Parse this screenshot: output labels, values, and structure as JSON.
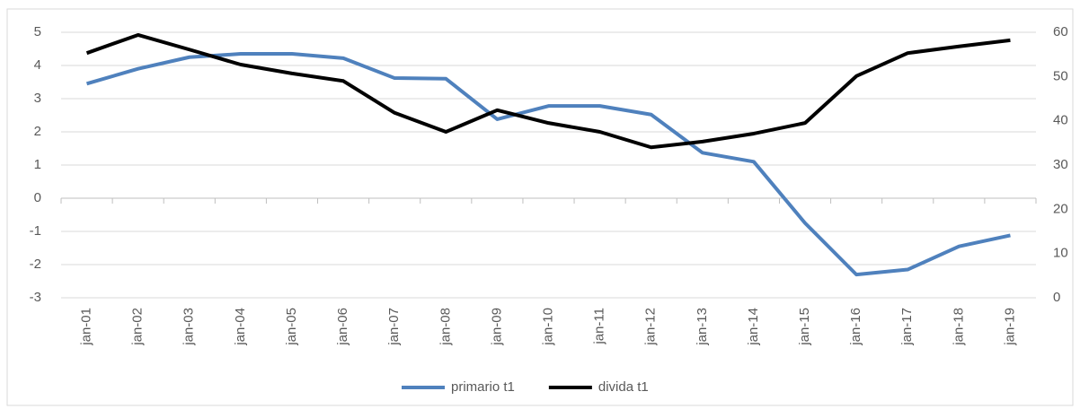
{
  "chart_data": {
    "type": "line",
    "categories": [
      "jan-01",
      "jan-02",
      "jan-03",
      "jan-04",
      "jan-05",
      "jan-06",
      "jan-07",
      "jan-08",
      "jan-09",
      "jan-10",
      "jan-11",
      "jan-12",
      "jan-13",
      "jan-14",
      "jan-15",
      "jan-16",
      "jan-17",
      "jan-18",
      "jan-19"
    ],
    "series": [
      {
        "name": "primario t1",
        "color": "#4f81bd",
        "values": [
          3.45,
          3.9,
          4.25,
          4.35,
          4.35,
          4.22,
          3.62,
          3.6,
          2.38,
          2.78,
          2.78,
          2.52,
          1.37,
          1.1,
          -0.75,
          -2.3,
          -2.15,
          -1.45,
          -1.12
        ]
      },
      {
        "name": "divida t1",
        "color": "#000000",
        "axis": "y2",
        "values": [
          55.3,
          59.4,
          56.1,
          52.7,
          50.7,
          49,
          41.8,
          37.5,
          42.4,
          39.5,
          37.5,
          34,
          35.3,
          37.1,
          39.5,
          50.1,
          55.3,
          56.8,
          58.2
        ]
      }
    ],
    "ylim": [
      -3,
      5
    ],
    "yticks": [
      -3,
      -2,
      -1,
      0,
      1,
      2,
      3,
      4,
      5
    ],
    "y2lim": [
      0,
      60
    ],
    "y2ticks": [
      0,
      10,
      20,
      30,
      40,
      50,
      60
    ],
    "grid": true,
    "legend": "bottom"
  }
}
